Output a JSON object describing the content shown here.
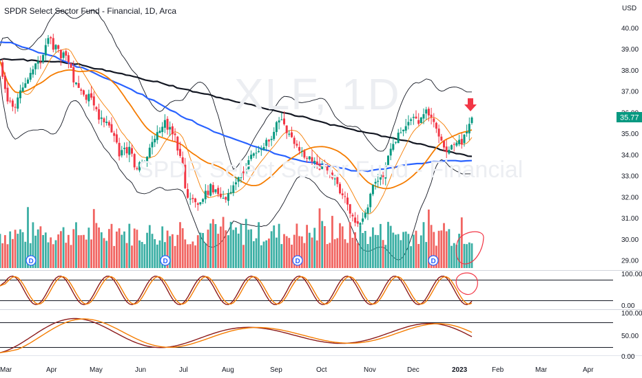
{
  "header": {
    "title": "SPDR Select Sector Fund - Financial, 1D, Arca",
    "watermark_symbol": "XLF, 1D",
    "watermark_name": "SPDR Select Sector Fund - Financial"
  },
  "chart_data": {
    "type": "candlestick",
    "currency": "USD",
    "current_price": "35.77",
    "price_axis": {
      "labels": [
        "40.00",
        "39.00",
        "38.00",
        "37.00",
        "36.00",
        "35.00",
        "34.00",
        "33.00",
        "32.00",
        "31.00",
        "30.00",
        "29.00"
      ],
      "ylim": [
        28.6,
        40.4
      ]
    },
    "time_axis": {
      "labels": [
        "Mar",
        "Apr",
        "May",
        "Jun",
        "Jul",
        "Aug",
        "Sep",
        "Oct",
        "Nov",
        "Dec",
        "2023",
        "Feb",
        "Mar",
        "Apr"
      ]
    },
    "dividend_marker": "D",
    "dividend_dates": [
      "Mar",
      "Jun",
      "Sep",
      "Dec"
    ],
    "close": [
      38.45,
      37.7,
      37.12,
      36.53,
      36.53,
      36.28,
      36.25,
      36.72,
      37.05,
      37.19,
      37.39,
      37.57,
      37.88,
      38.05,
      38.33,
      38.43,
      38.35,
      38.73,
      39.2,
      39.53,
      39.52,
      38.98,
      39.21,
      39.02,
      38.57,
      38.85,
      38.7,
      38.39,
      38.12,
      37.43,
      37.43,
      37.17,
      37.04,
      36.85,
      36.61,
      36.89,
      36.71,
      36.34,
      36.16,
      35.67,
      35.77,
      35.54,
      35.57,
      35.39,
      35.06,
      34.9,
      34.59,
      33.93,
      34.23,
      34.33,
      34.07,
      34.38,
      34.06,
      33.41,
      33.32,
      33.65,
      33.66,
      33.69,
      33.91,
      34.34,
      34.61,
      34.76,
      35.08,
      35.14,
      35.33,
      35.65,
      35.19,
      35.32,
      34.98,
      34.94,
      34.21,
      33.95,
      33.51,
      32.42,
      31.97,
      31.92,
      31.91,
      31.76,
      31.64,
      31.76,
      31.91,
      32.3,
      32.1,
      32.62,
      32.22,
      32.37,
      32.14,
      32.0,
      31.96,
      31.88,
      32.19,
      32.24,
      32.56,
      32.7,
      32.94,
      33.15,
      33.13,
      33.35,
      33.75,
      34.01,
      34.07,
      34.1,
      34.18,
      34.27,
      34.37,
      34.71,
      34.64,
      34.76,
      35.09,
      35.55,
      35.63,
      35.67,
      35.45,
      35.03,
      35.0,
      34.84,
      34.52,
      34.44,
      34.19,
      34.18,
      33.87,
      33.85,
      33.93,
      33.68,
      33.72,
      33.5,
      33.3,
      33.48,
      33.42,
      33.26,
      33.2,
      32.89,
      32.88,
      32.62,
      32.18,
      32.09,
      32.04,
      31.65,
      31.22,
      31.09,
      30.79,
      30.74,
      30.78,
      30.99,
      31.26,
      31.51,
      32.16,
      32.59,
      32.72,
      32.77,
      33.07,
      32.95,
      33.49,
      33.96,
      34.29,
      34.52,
      34.61,
      35.05,
      35.06,
      35.19,
      35.36,
      35.56,
      35.68,
      35.8,
      35.72,
      35.47,
      35.77,
      35.93,
      36.15,
      35.87,
      35.78,
      35.56,
      35.24,
      34.87,
      34.68,
      34.35,
      34.13,
      34.24,
      34.46,
      34.49,
      34.58,
      34.71,
      34.49,
      34.96,
      35.09,
      35.47,
      35.77
    ],
    "ma_black": [
      38.5,
      38.55,
      38.53,
      38.5,
      38.51,
      38.52,
      38.53,
      38.45,
      38.49,
      38.47,
      38.42,
      38.42,
      38.43,
      38.41,
      38.41,
      38.42,
      38.39,
      38.34,
      38.34,
      38.29,
      38.31,
      38.24,
      38.2,
      38.14,
      38.08,
      38.07,
      38.06,
      37.98,
      37.97,
      37.91,
      37.87,
      37.85,
      37.78,
      37.76,
      37.71,
      37.67,
      37.6,
      37.54,
      37.51,
      37.47,
      37.48,
      37.41,
      37.34,
      37.28,
      37.28,
      37.17,
      37.14,
      37.11,
      37.08,
      36.99,
      36.97,
      36.92,
      36.89,
      36.87,
      36.81,
      36.73,
      36.71,
      36.64,
      36.63,
      36.57,
      36.51,
      36.48,
      36.46,
      36.41,
      36.38,
      36.32,
      36.26,
      36.21,
      36.16,
      36.14,
      36.09,
      36.05,
      36.0,
      35.97,
      35.93,
      35.85,
      35.82,
      35.82,
      35.77,
      35.69,
      35.64,
      35.6,
      35.55,
      35.5,
      35.41,
      35.42,
      35.37,
      35.34,
      35.27,
      35.23,
      35.19,
      35.12,
      35.11,
      35.06,
      35.03,
      35.01,
      34.97,
      34.88,
      34.87,
      34.83,
      34.8,
      34.74,
      34.7,
      34.68,
      34.65,
      34.57,
      34.53,
      34.52,
      34.47,
      34.4,
      34.37,
      34.33,
      34.24,
      34.2,
      34.16,
      34.13,
      34.06,
      34.05,
      34.01,
      33.94,
      33.93
    ],
    "ma_blue": [
      39.34,
      39.32,
      39.32,
      39.22,
      39.11,
      39.05,
      38.96,
      38.84,
      38.8,
      38.72,
      38.66,
      38.51,
      38.41,
      38.3,
      38.16,
      38.14,
      38.02,
      37.9,
      37.77,
      37.65,
      37.56,
      37.44,
      37.33,
      37.21,
      37.09,
      36.93,
      36.86,
      36.66,
      36.59,
      36.43,
      36.28,
      36.12,
      36.02,
      35.83,
      35.7,
      35.64,
      35.46,
      35.35,
      35.24,
      35.09,
      35.01,
      34.9,
      34.82,
      34.72,
      34.63,
      34.54,
      34.43,
      34.36,
      34.25,
      34.2,
      34.06,
      34.0,
      33.94,
      33.83,
      33.78,
      33.71,
      33.66,
      33.64,
      33.55,
      33.56,
      33.45,
      33.48,
      33.38,
      33.35,
      33.25,
      33.24,
      33.28,
      33.22,
      33.28,
      33.32,
      33.33,
      33.38,
      33.41,
      33.49,
      33.53,
      33.56,
      33.59,
      33.59,
      33.64,
      33.69,
      33.68,
      33.72,
      33.73,
      33.73,
      33.7,
      33.72,
      33.73
    ],
    "volume_ylim": [
      0,
      110
    ],
    "stoch_rsi": {
      "axis_labels": [
        "100.00",
        "0.00"
      ],
      "upper": 80,
      "lower": 20
    },
    "stochastic": {
      "axis_labels": [
        "100.00",
        "50.00",
        "0.00"
      ],
      "upper": 80,
      "lower": 20
    }
  }
}
